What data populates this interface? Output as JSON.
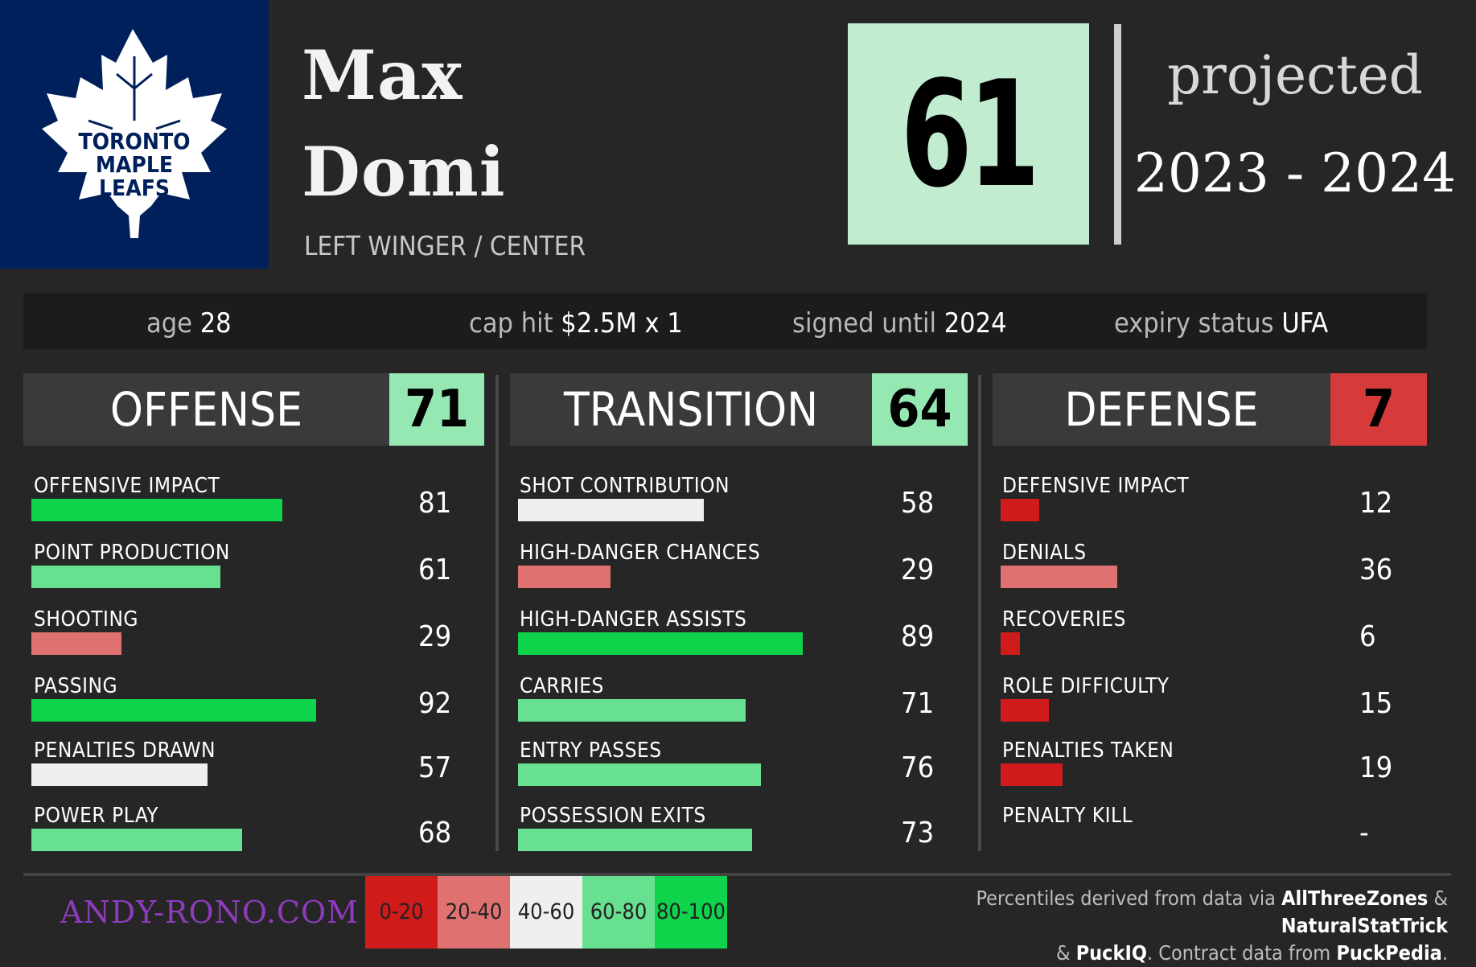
{
  "player": {
    "first_name": "Max",
    "last_name": "Domi",
    "position": "LEFT WINGER / CENTER",
    "team_logo_text": [
      "TORONTO",
      "MAPLE",
      "LEAFS"
    ]
  },
  "overall": {
    "value": "61",
    "projected_label": "projected",
    "season": "2023 - 2024",
    "color": "#c1ecd0"
  },
  "info": {
    "age_label": "age",
    "age_value": "28",
    "cap_label": "cap hit",
    "cap_value": "$2.5M x 1",
    "signed_label": "signed until",
    "signed_value": "2024",
    "expiry_label": "expiry status",
    "expiry_value": "UFA"
  },
  "categories": [
    {
      "title": "OFFENSE",
      "score": "71",
      "score_color": "#96e8b3",
      "metrics": [
        {
          "label": "OFFENSIVE IMPACT",
          "value": "81",
          "pct": 81,
          "color": "#0ed34b"
        },
        {
          "label": "POINT PRODUCTION",
          "value": "61",
          "pct": 61,
          "color": "#67e08f"
        },
        {
          "label": "SHOOTING",
          "value": "29",
          "pct": 29,
          "color": "#e07171"
        },
        {
          "label": "PASSING",
          "value": "92",
          "pct": 92,
          "color": "#0ed34b"
        },
        {
          "label": "PENALTIES DRAWN",
          "value": "57",
          "pct": 57,
          "color": "#efefef"
        },
        {
          "label": "POWER PLAY",
          "value": "68",
          "pct": 68,
          "color": "#67e08f"
        }
      ]
    },
    {
      "title": "TRANSITION",
      "score": "64",
      "score_color": "#96e8b3",
      "metrics": [
        {
          "label": "SHOT CONTRIBUTION",
          "value": "58",
          "pct": 58,
          "color": "#efefef"
        },
        {
          "label": "HIGH-DANGER CHANCES",
          "value": "29",
          "pct": 29,
          "color": "#e07171"
        },
        {
          "label": "HIGH-DANGER ASSISTS",
          "value": "89",
          "pct": 89,
          "color": "#0ed34b"
        },
        {
          "label": "CARRIES",
          "value": "71",
          "pct": 71,
          "color": "#67e08f"
        },
        {
          "label": "ENTRY PASSES",
          "value": "76",
          "pct": 76,
          "color": "#67e08f"
        },
        {
          "label": "POSSESSION EXITS",
          "value": "73",
          "pct": 73,
          "color": "#67e08f"
        }
      ]
    },
    {
      "title": "DEFENSE",
      "score": "7",
      "score_color": "#d63a3a",
      "metrics": [
        {
          "label": "DEFENSIVE IMPACT",
          "value": "12",
          "pct": 12,
          "color": "#d01b1b"
        },
        {
          "label": "DENIALS",
          "value": "36",
          "pct": 36,
          "color": "#e07171"
        },
        {
          "label": "RECOVERIES",
          "value": "6",
          "pct": 6,
          "color": "#d01b1b"
        },
        {
          "label": "ROLE DIFFICULTY",
          "value": "15",
          "pct": 15,
          "color": "#d01b1b"
        },
        {
          "label": "PENALTIES TAKEN",
          "value": "19",
          "pct": 19,
          "color": "#d01b1b"
        },
        {
          "label": "PENALTY KILL",
          "value": "-",
          "pct": 0,
          "color": "#d01b1b"
        }
      ]
    }
  ],
  "legend": [
    {
      "label": "0-20",
      "color": "#d01b1b"
    },
    {
      "label": "20-40",
      "color": "#e07171"
    },
    {
      "label": "40-60",
      "color": "#efefef"
    },
    {
      "label": "60-80",
      "color": "#67e08f"
    },
    {
      "label": "80-100",
      "color": "#0ed34b"
    }
  ],
  "footer": {
    "site": "ANDY-RONO.COM",
    "credits_1": "Percentiles derived from data via ",
    "source_1": "AllThreeZones",
    "amp_1": " & ",
    "source_2": "NaturalStatTrick",
    "amp_2": "& ",
    "source_3": "PuckIQ",
    "credits_2": ". Contract data from ",
    "source_4": "PuckPedia",
    "period": "."
  }
}
